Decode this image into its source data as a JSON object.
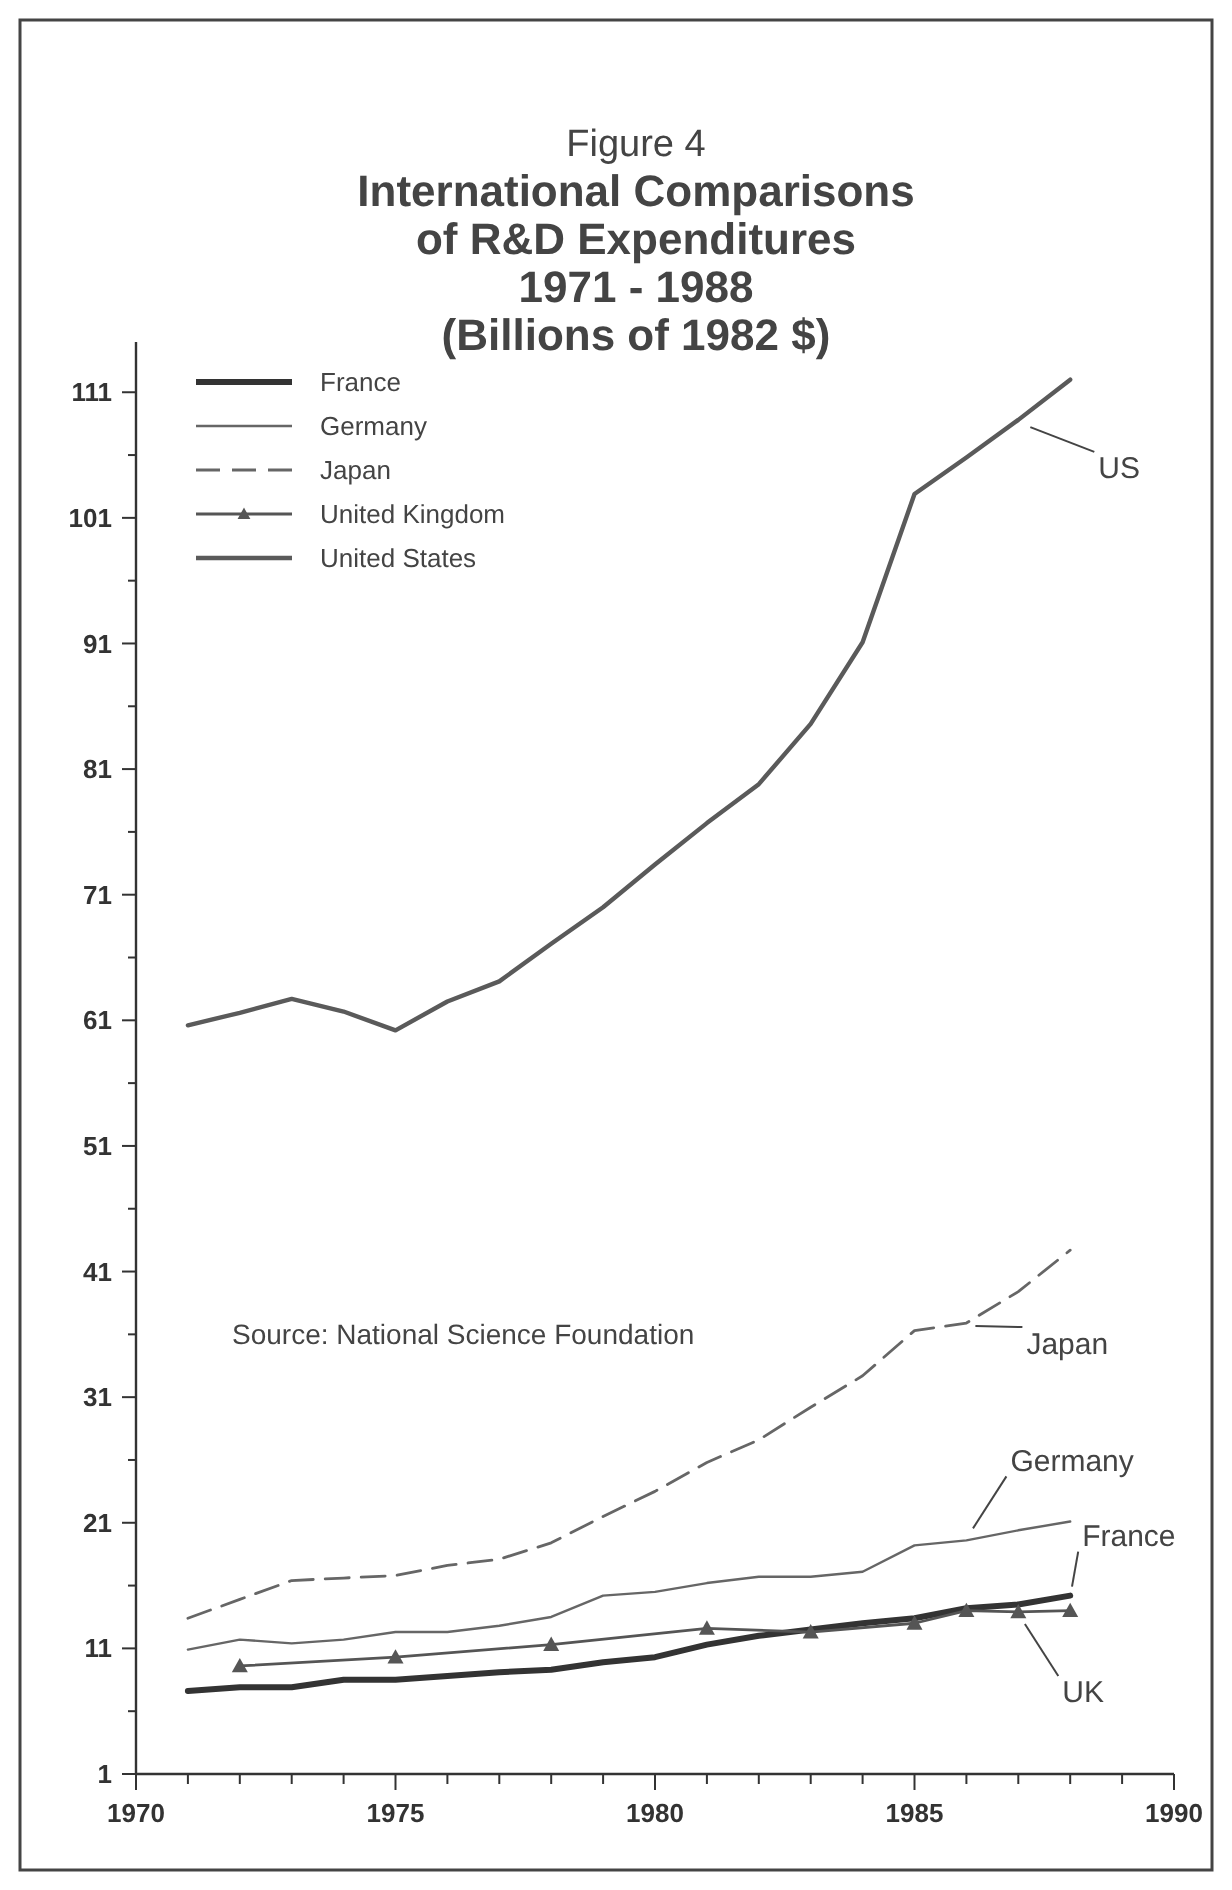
{
  "chart_data": {
    "type": "line",
    "subtitle": "Figure 4",
    "title": "International Comparisons\nof R&D Expenditures\n1971 - 1988\n(Billions of 1982 $)",
    "xlim": [
      1970,
      1990
    ],
    "ylim": [
      1,
      115
    ],
    "xticks": [
      1970,
      {
        "value": 1971,
        "label": null
      },
      {
        "value": 1972,
        "label": null
      },
      {
        "value": 1973,
        "label": null
      },
      {
        "value": 1974,
        "label": null
      },
      1975,
      {
        "value": 1976,
        "label": null
      },
      {
        "value": 1977,
        "label": null
      },
      {
        "value": 1978,
        "label": null
      },
      {
        "value": 1979,
        "label": null
      },
      1980,
      {
        "value": 1981,
        "label": null
      },
      {
        "value": 1982,
        "label": null
      },
      {
        "value": 1983,
        "label": null
      },
      {
        "value": 1984,
        "label": null
      },
      1985,
      {
        "value": 1986,
        "label": null
      },
      {
        "value": 1987,
        "label": null
      },
      {
        "value": 1988,
        "label": null
      },
      {
        "value": 1989,
        "label": null
      },
      1990
    ],
    "yticks": [
      1,
      {
        "value": 6,
        "label": null
      },
      11,
      {
        "value": 16,
        "label": null
      },
      21,
      {
        "value": 26,
        "label": null
      },
      31,
      {
        "value": 36,
        "label": null
      },
      41,
      {
        "value": 46,
        "label": null
      },
      51,
      {
        "value": 56,
        "label": null
      },
      61,
      {
        "value": 66,
        "label": null
      },
      71,
      {
        "value": 76,
        "label": null
      },
      81,
      {
        "value": 86,
        "label": null
      },
      91,
      {
        "value": 96,
        "label": null
      },
      101,
      {
        "value": 106,
        "label": null
      },
      111
    ],
    "grid": false,
    "legend": "top left",
    "x": [
      1971,
      1972,
      1973,
      1974,
      1975,
      1976,
      1977,
      1978,
      1979,
      1980,
      1981,
      1982,
      1983,
      1984,
      1985,
      1986,
      1987,
      1988
    ],
    "series": [
      {
        "name": "France",
        "color": "#333333",
        "values": [
          7.6,
          7.9,
          7.9,
          8.5,
          8.5,
          8.8,
          9.1,
          9.3,
          9.9,
          10.3,
          11.3,
          12.0,
          12.5,
          13.0,
          13.4,
          14.2,
          14.5,
          15.2
        ]
      },
      {
        "name": "Germany",
        "color": "#666666",
        "values": [
          10.9,
          11.7,
          11.4,
          11.7,
          12.3,
          12.3,
          12.8,
          13.5,
          15.2,
          15.5,
          16.2,
          16.7,
          16.7,
          17.1,
          19.2,
          19.6,
          20.4,
          21.1
        ]
      },
      {
        "name": "Japan",
        "color": "#666666",
        "line_style": "dashed",
        "values": [
          13.4,
          14.9,
          16.4,
          16.6,
          16.8,
          17.6,
          18.1,
          19.4,
          21.5,
          23.5,
          25.8,
          27.6,
          30.2,
          32.7,
          36.3,
          36.9,
          39.4,
          42.7
        ]
      },
      {
        "name": "United Kingdom",
        "color": "#555555",
        "marker": "triangle",
        "x": [
          1972,
          1975,
          1978,
          1981,
          1983,
          1985,
          1986,
          1987,
          1988
        ],
        "values": [
          9.6,
          10.3,
          11.3,
          12.6,
          12.3,
          13.0,
          14.0,
          13.9,
          14.0
        ]
      },
      {
        "name": "United States",
        "color": "#5a5a5a",
        "values": [
          60.6,
          61.6,
          62.7,
          61.7,
          60.2,
          62.5,
          64.1,
          67.1,
          70.0,
          73.4,
          76.7,
          79.8,
          84.6,
          91.1,
          102.9,
          105.8,
          108.8,
          112.0
        ]
      }
    ],
    "annotations": [
      "Source:  National Science Foundation",
      {
        "text": "US",
        "x": 1987,
        "y": 108.8
      },
      {
        "text": "Japan",
        "x": 1986,
        "y": 36.9
      },
      {
        "text": "Germany",
        "x": 1986,
        "y": 19.6
      },
      {
        "text": "France",
        "x": 1988,
        "y": 15.2
      },
      {
        "text": "UK",
        "x": 1987,
        "y": 13.9
      }
    ]
  }
}
